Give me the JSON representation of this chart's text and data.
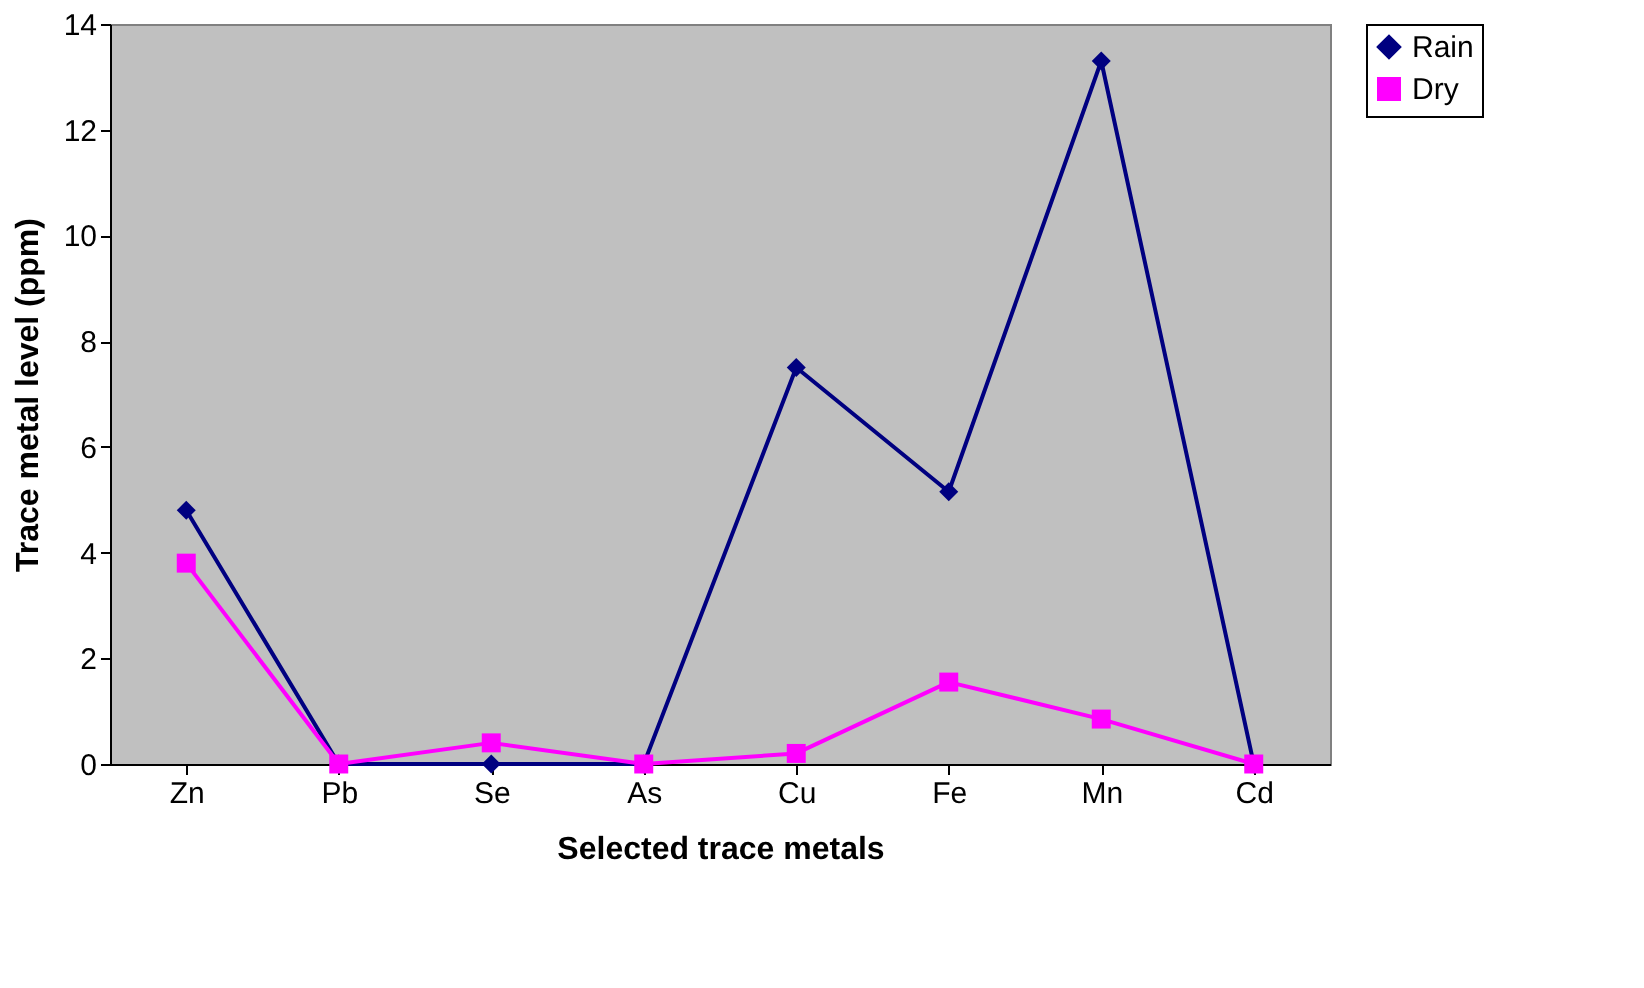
{
  "chart_data": {
    "type": "line",
    "xlabel": "Selected trace metals",
    "ylabel": "Trace metal level (ppm)",
    "categories": [
      "Zn",
      "Pb",
      "Se",
      "As",
      "Cu",
      "Fe",
      "Mn",
      "Cd"
    ],
    "series": [
      {
        "name": "Rain",
        "color": "#000080",
        "marker": "diamond",
        "values": [
          4.8,
          0,
          0,
          0,
          7.5,
          5.15,
          13.3,
          0
        ]
      },
      {
        "name": "Dry",
        "color": "#ff00ff",
        "marker": "square",
        "values": [
          3.8,
          0,
          0.4,
          0,
          0.2,
          1.55,
          0.85,
          0
        ]
      }
    ],
    "ylim": [
      0,
      14
    ],
    "yticks": [
      0,
      2,
      4,
      6,
      8,
      10,
      12,
      14
    ],
    "grid": false,
    "legend": "right",
    "line_style": "solid"
  }
}
